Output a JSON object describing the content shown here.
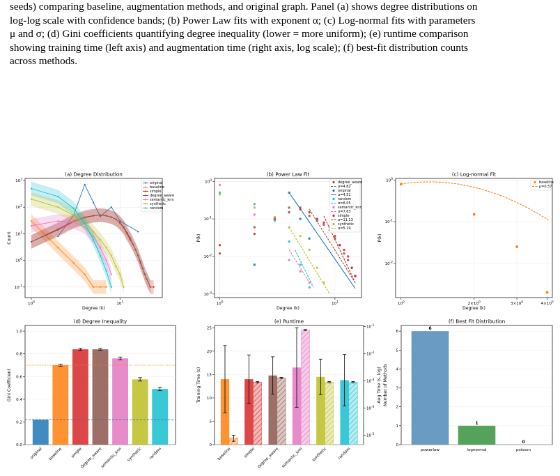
{
  "caption": {
    "line1": "seeds) comparing baseline, augmentation methods, and original graph. Panel (a) shows degree distributions on",
    "line2": "log-log scale with confidence bands; (b) Power Law fits with exponent α; (c) Log-normal fits with parameters",
    "line3": "μ and σ; (d) Gini coefficients quantifying degree inequality (lower = more uniform); (e) runtime comparison",
    "line4": "showing training time (left axis) and augmentation time (right axis, log scale); (f) best-fit distribution counts",
    "line5": "across methods."
  },
  "colors": {
    "original": "#1f77b4",
    "baseline": "#ff7f0e",
    "simple": "#d62728",
    "degree_aware": "#8c564b",
    "semantic_knn": "#e377c2",
    "synthetic": "#bcbd22",
    "random": "#17becf",
    "powerlaw": "#6a9bc3",
    "lognormal": "#55a35a",
    "ref_orange": "#ff7f0e",
    "ref_blue": "#1f77b4"
  },
  "chart_data": [
    {
      "panel": "a",
      "type": "line",
      "title": "(a) Degree Distribution",
      "xlabel": "Degree (k)",
      "ylabel": "Count",
      "xscale": "log",
      "yscale": "log",
      "xlim": [
        0.85,
        30
      ],
      "ylim": [
        0.04,
        1200
      ],
      "xticks": [
        "10^0",
        "10^1"
      ],
      "yticks": [
        "10^-1",
        "10^0",
        "10^1",
        "10^2",
        "10^3"
      ],
      "legend": "top-right",
      "grid": true,
      "series": [
        {
          "name": "original",
          "x": [
            2,
            3,
            4,
            5,
            6,
            8,
            10,
            16
          ],
          "y": [
            8,
            50,
            700,
            150,
            45,
            100,
            30,
            12
          ]
        },
        {
          "name": "baseline",
          "x": [
            1,
            2,
            3,
            4,
            5,
            6,
            7
          ],
          "y": [
            30,
            3,
            0.8,
            0.3,
            0.1,
            0.1,
            0.1
          ]
        },
        {
          "name": "simple",
          "x": [
            1,
            2,
            3,
            4,
            5,
            6,
            7,
            8,
            9,
            10,
            11,
            12,
            13,
            14,
            15,
            16,
            17,
            18,
            19,
            20,
            22,
            24
          ],
          "y": [
            5,
            15,
            30,
            42,
            48,
            50,
            48,
            42,
            35,
            25,
            17,
            10,
            6,
            4,
            2.5,
            1.5,
            0.8,
            0.5,
            0.3,
            0.2,
            0.1,
            0.1
          ]
        },
        {
          "name": "degree_aware",
          "x": [
            1,
            2,
            3,
            4,
            5,
            6,
            7,
            8,
            9,
            10,
            11,
            12,
            13,
            14,
            15,
            16,
            17,
            18,
            19,
            20,
            22
          ],
          "y": [
            5,
            14,
            28,
            40,
            47,
            50,
            47,
            42,
            35,
            26,
            18,
            11,
            7,
            4,
            2.5,
            1.5,
            0.9,
            0.5,
            0.3,
            0.2,
            0.1
          ]
        },
        {
          "name": "semantic_knn",
          "x": [
            1,
            2,
            3,
            4,
            5,
            6,
            7,
            8
          ],
          "y": [
            20,
            30,
            28,
            18,
            8,
            3,
            1,
            0.3
          ]
        },
        {
          "name": "synthetic",
          "x": [
            1,
            2,
            3,
            4,
            5,
            6,
            7,
            8,
            9,
            10,
            11
          ],
          "y": [
            200,
            100,
            50,
            25,
            12,
            6,
            3,
            1.5,
            0.6,
            0.3,
            0.1
          ]
        },
        {
          "name": "random",
          "x": [
            1,
            2,
            3,
            4,
            5,
            6,
            7,
            8
          ],
          "y": [
            500,
            250,
            90,
            25,
            6,
            1.5,
            0.4,
            0.1
          ]
        }
      ]
    },
    {
      "panel": "b",
      "type": "scatter",
      "title": "(b) Power Law Fit",
      "xlabel": "Degree (k)",
      "ylabel": "P(k)",
      "xscale": "log",
      "yscale": "log",
      "xlim": [
        0.9,
        17
      ],
      "ylim": [
        0.0008,
        1.2
      ],
      "xticks": [
        "10^0",
        "10^1"
      ],
      "yticks": [
        "10^-3",
        "10^-2",
        "10^-1",
        "10^0"
      ],
      "legend": "top-right",
      "grid": true,
      "series": [
        {
          "name": "degree_aware",
          "label": "degree_aware",
          "fit_label": "α=4.82",
          "x": [
            1,
            2,
            3,
            4,
            5,
            6,
            7,
            8,
            9,
            10,
            11,
            12,
            13,
            14,
            15
          ],
          "y": [
            0.012,
            0.06,
            0.11,
            0.2,
            0.2,
            0.12,
            0.09,
            0.07,
            0.05,
            0.03,
            0.02,
            0.012,
            0.008,
            0.005,
            0.003
          ],
          "fit_x": [
            6,
            15
          ],
          "fit_y": [
            0.18,
            0.002
          ]
        },
        {
          "name": "original",
          "label": "original",
          "fit_label": "α=4.51",
          "x": [
            2,
            4,
            5,
            6
          ],
          "y": [
            0.006,
            0.5,
            0.1,
            0.03
          ],
          "fit_x": [
            4,
            15
          ],
          "fit_y": [
            0.5,
            0.0014
          ]
        },
        {
          "name": "random",
          "label": "random",
          "fit_label": "α=8.05",
          "x": [
            1,
            2,
            3,
            4,
            5,
            6
          ],
          "y": [
            0.5,
            0.25,
            0.09,
            0.025,
            0.006,
            0.0015
          ],
          "fit_x": [
            4.5,
            6.5
          ],
          "fit_y": [
            0.015,
            0.0015
          ]
        },
        {
          "name": "semantic_knn",
          "label": "semantic_knn",
          "fit_label": "α=7.63",
          "x": [
            1,
            2,
            3,
            4,
            5,
            6
          ],
          "y": [
            0.8,
            0.13,
            0.1,
            0.008,
            0.004,
            0.002
          ],
          "fit_x": [
            4,
            6
          ],
          "fit_y": [
            0.015,
            0.002
          ]
        },
        {
          "name": "simple",
          "label": "simple",
          "fit_label": "α=11.13",
          "x": [
            1,
            2,
            3,
            4,
            5,
            6,
            7,
            8,
            9,
            10,
            11,
            12,
            13,
            14,
            15
          ],
          "y": [
            0.02,
            0.04,
            0.1,
            0.15,
            0.18,
            0.15,
            0.1,
            0.08,
            0.06,
            0.035,
            0.02,
            0.015,
            0.01,
            0.005,
            0.003
          ],
          "fit_x": [
            8,
            15
          ],
          "fit_y": [
            0.12,
            0.002
          ]
        },
        {
          "name": "synthetic",
          "label": "synthetic",
          "fit_label": "α=5.19",
          "x": [
            1,
            2,
            3,
            4,
            5,
            6,
            7,
            8
          ],
          "y": [
            0.45,
            0.2,
            0.11,
            0.06,
            0.035,
            0.015,
            0.005,
            0.002
          ],
          "fit_x": [
            4,
            9
          ],
          "fit_y": [
            0.06,
            0.001
          ]
        }
      ]
    },
    {
      "panel": "c",
      "type": "scatter",
      "title": "(c) Log-normal Fit",
      "xlabel": "Degree (k)",
      "ylabel": "P(k)",
      "xscale": "log",
      "yscale": "log",
      "xlim": [
        0.95,
        4.2
      ],
      "ylim": [
        0.0015,
        1.1
      ],
      "xticks": [
        "10^0",
        "2×10^0",
        "3×10^0",
        "4×10^0"
      ],
      "yticks": [
        "10^-2",
        "10^-1",
        "10^0"
      ],
      "legend": "top-right",
      "grid": true,
      "series": [
        {
          "name": "baseline",
          "label": "baseline",
          "fit_label": "μ=0.57",
          "x": [
            1,
            2,
            3,
            4
          ],
          "y": [
            0.8,
            0.15,
            0.025,
            0.002
          ]
        }
      ]
    },
    {
      "panel": "d",
      "type": "bar",
      "title": "(d) Degree Inequality",
      "xlabel": "",
      "ylabel": "Gini Coefficient",
      "ylim": [
        0,
        1.05
      ],
      "yticks": [
        "0.0",
        "0.2",
        "0.4",
        "0.6",
        "0.8",
        "1.0"
      ],
      "categories": [
        "original",
        "baseline",
        "simple",
        "degree_aware",
        "semantic_knn",
        "synthetic",
        "random"
      ],
      "values": [
        0.22,
        0.7,
        0.84,
        0.84,
        0.76,
        0.575,
        0.49
      ],
      "errors": [
        0,
        0.01,
        0.008,
        0.008,
        0.012,
        0.015,
        0.015
      ],
      "ref_lines": [
        0.7,
        0.22
      ]
    },
    {
      "panel": "e",
      "type": "bar",
      "title": "(e) Runtime",
      "xlabel": "",
      "ylabel": "Training Time (s)",
      "ylabel_right": "Aug Time (s, log)",
      "ylim": [
        0,
        25.5
      ],
      "ylim_right": [
        4.5e-06,
        0.11
      ],
      "yticks": [
        "0",
        "5",
        "10",
        "15",
        "20",
        "25"
      ],
      "yticks_right": [
        "10^-5",
        "10^-4",
        "10^-3",
        "10^-2",
        "10^-1"
      ],
      "categories": [
        "baseline",
        "simple",
        "degree_aware",
        "semantic_knn",
        "synthetic",
        "random"
      ],
      "train_values": [
        14.0,
        14.0,
        14.8,
        16.5,
        14.5,
        13.8
      ],
      "train_errors": [
        7.2,
        5.2,
        4.0,
        8.5,
        3.8,
        5.5
      ],
      "aug_values": [
        8e-06,
        0.0009,
        0.0013,
        0.075,
        0.0009,
        0.0009
      ],
      "aug_errors": [
        2e-06,
        5e-05,
        6e-05,
        0.003,
        5e-05,
        5e-05
      ]
    },
    {
      "panel": "f",
      "type": "bar",
      "title": "(f) Best Fit Distribution",
      "xlabel": "",
      "ylabel": "Number of Methods",
      "ylim": [
        0,
        6.3
      ],
      "yticks": [
        "0",
        "1",
        "2",
        "3",
        "4",
        "5",
        "6"
      ],
      "categories": [
        "powerlaw",
        "lognormal",
        "poisson"
      ],
      "values": [
        6,
        1,
        0
      ],
      "labels": [
        "6",
        "1",
        "0"
      ]
    }
  ]
}
